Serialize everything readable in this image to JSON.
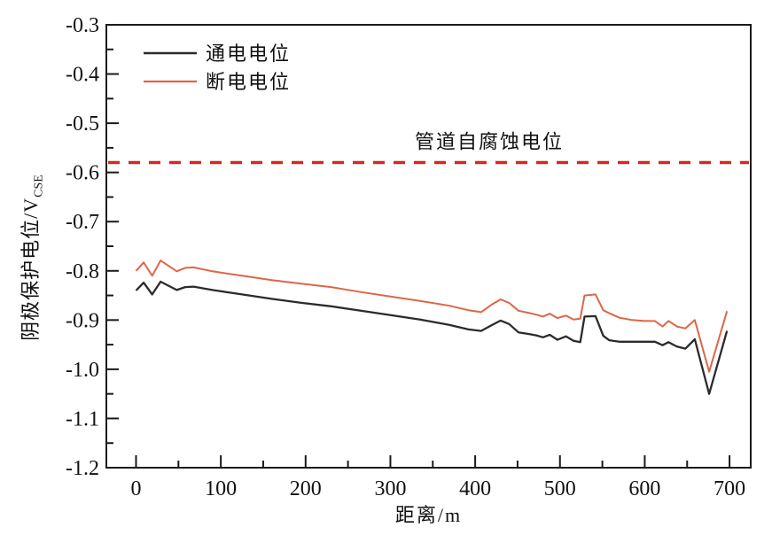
{
  "figure": {
    "background": "#ffffff"
  },
  "chart_data": {
    "type": "line",
    "title": "",
    "xlabel": "距离/m",
    "ylabel": "阴极保护电位/V",
    "ylabel_subscript": "CSE",
    "xlim": [
      -35,
      725
    ],
    "ylim": [
      -1.2,
      -0.3
    ],
    "x_ticks": [
      0,
      100,
      200,
      300,
      400,
      500,
      600,
      700
    ],
    "x_minor_ticks": [
      50,
      150,
      250,
      350,
      450,
      550,
      650
    ],
    "y_ticks": [
      -0.3,
      -0.4,
      -0.5,
      -0.6,
      -0.7,
      -0.8,
      -0.9,
      -1.0,
      -1.1,
      -1.2
    ],
    "y_minor_ticks": [
      -0.35,
      -0.45,
      -0.55,
      -0.65,
      -0.75,
      -0.85,
      -0.95,
      -1.05,
      -1.15
    ],
    "grid": false,
    "legend_position": "top-left",
    "axis_color": "#1a1a1a",
    "x": [
      0,
      9,
      19,
      29,
      48,
      58,
      68,
      90,
      125,
      160,
      195,
      230,
      265,
      300,
      335,
      370,
      392,
      407,
      420,
      430,
      440,
      451,
      462,
      472,
      480,
      488,
      497,
      507,
      516,
      524,
      529,
      542,
      551,
      558,
      570,
      585,
      600,
      612,
      621,
      628,
      638,
      648,
      659,
      676,
      697
    ],
    "series": [
      {
        "name": "通电电位",
        "color": "#2b2b2b",
        "values": [
          -0.84,
          -0.824,
          -0.848,
          -0.822,
          -0.839,
          -0.833,
          -0.832,
          -0.839,
          -0.848,
          -0.857,
          -0.865,
          -0.872,
          -0.881,
          -0.89,
          -0.899,
          -0.91,
          -0.919,
          -0.922,
          -0.91,
          -0.901,
          -0.908,
          -0.925,
          -0.928,
          -0.931,
          -0.935,
          -0.93,
          -0.94,
          -0.933,
          -0.942,
          -0.945,
          -0.893,
          -0.892,
          -0.932,
          -0.941,
          -0.944,
          -0.944,
          -0.944,
          -0.944,
          -0.951,
          -0.945,
          -0.954,
          -0.958,
          -0.939,
          -1.05,
          -0.922
        ]
      },
      {
        "name": "断电电位",
        "color": "#dd6648",
        "values": [
          -0.8,
          -0.783,
          -0.81,
          -0.779,
          -0.801,
          -0.794,
          -0.793,
          -0.801,
          -0.81,
          -0.819,
          -0.826,
          -0.833,
          -0.843,
          -0.852,
          -0.861,
          -0.871,
          -0.88,
          -0.884,
          -0.868,
          -0.858,
          -0.865,
          -0.881,
          -0.885,
          -0.889,
          -0.893,
          -0.887,
          -0.896,
          -0.891,
          -0.899,
          -0.897,
          -0.85,
          -0.848,
          -0.88,
          -0.886,
          -0.895,
          -0.9,
          -0.902,
          -0.902,
          -0.913,
          -0.902,
          -0.913,
          -0.917,
          -0.9,
          -1.005,
          -0.882
        ]
      }
    ],
    "reference_line": {
      "label": "管道自腐蚀电位",
      "value": -0.58,
      "color": "#d4281e",
      "style": "dashed"
    }
  }
}
